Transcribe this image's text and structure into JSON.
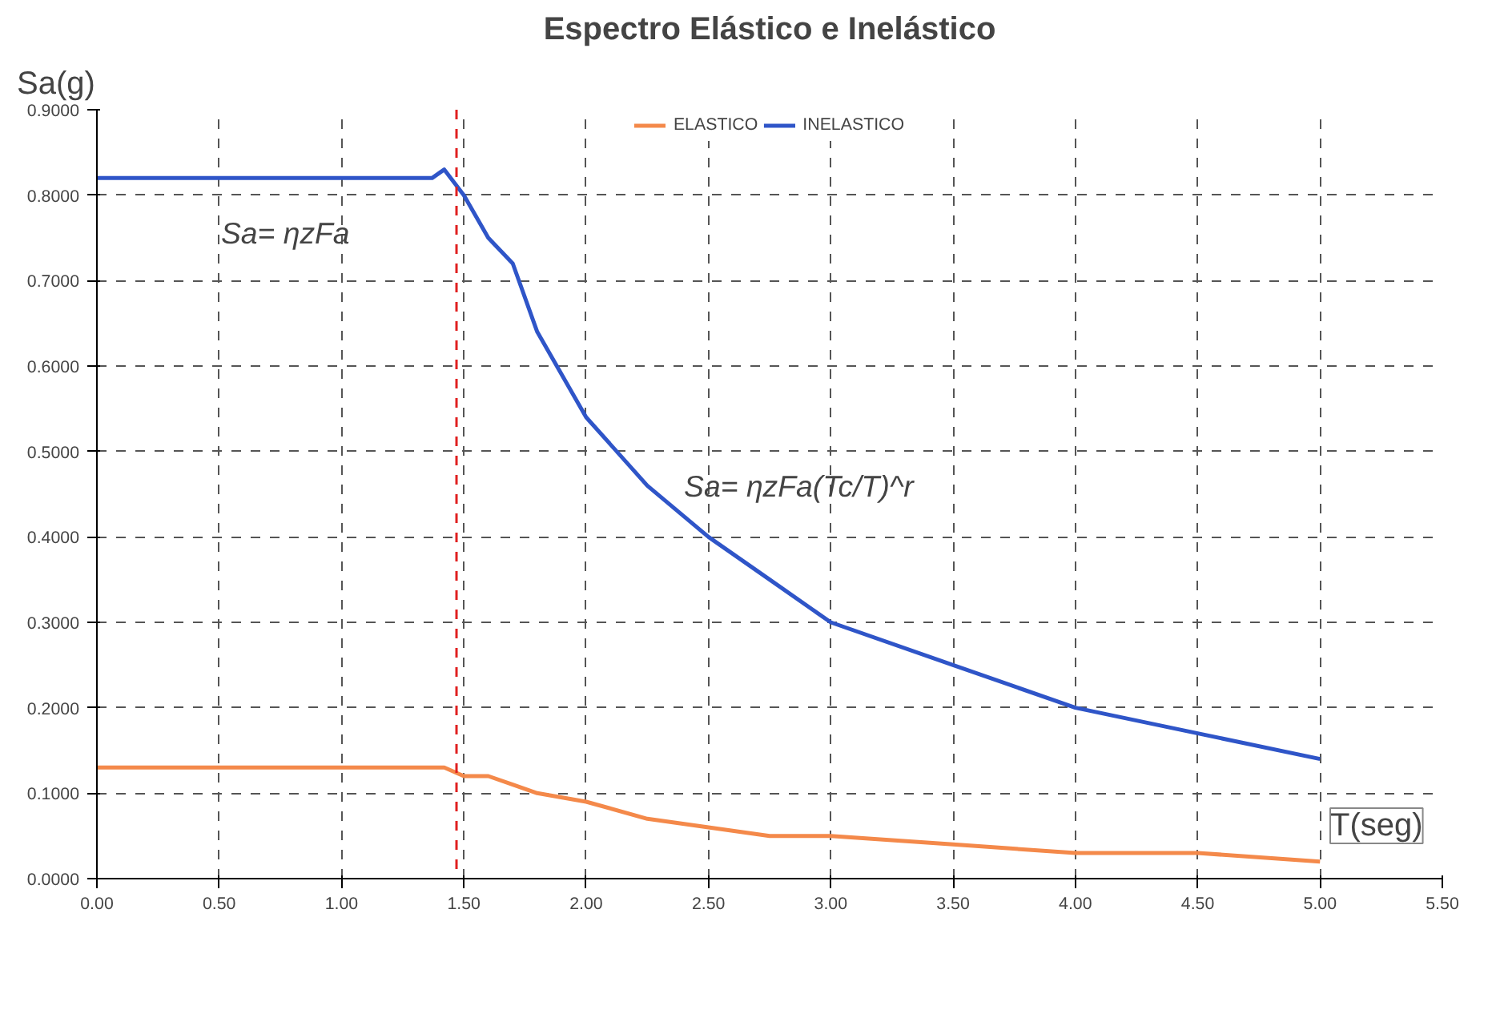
{
  "chart_data": {
    "type": "line",
    "title": "Espectro Elástico e Inelástico",
    "xlabel": "T(seg)",
    "ylabel": "Sa(g)",
    "x": [
      0,
      0.5,
      1.0,
      1.37,
      1.42,
      1.5,
      1.6,
      1.7,
      1.8,
      2.0,
      2.25,
      2.5,
      2.75,
      3.0,
      3.5,
      4.0,
      4.5,
      5.0
    ],
    "series": [
      {
        "name": "ELASTICO",
        "color": "#f4894a",
        "values": [
          0.13,
          0.13,
          0.13,
          0.13,
          0.13,
          0.12,
          0.12,
          0.11,
          0.1,
          0.09,
          0.07,
          0.06,
          0.05,
          0.05,
          0.04,
          0.03,
          0.03,
          0.02
        ]
      },
      {
        "name": "INELASTICO",
        "color": "#2f55c8",
        "values": [
          0.82,
          0.82,
          0.82,
          0.82,
          0.83,
          0.8,
          0.75,
          0.72,
          0.64,
          0.54,
          0.46,
          0.4,
          0.35,
          0.3,
          0.25,
          0.2,
          0.17,
          0.14
        ]
      }
    ],
    "xlim": [
      0,
      5.5
    ],
    "ylim": [
      0,
      0.9
    ],
    "xticks": [
      {
        "value": 0,
        "label": "0.00"
      },
      {
        "value": 0.5,
        "label": "0.50"
      },
      {
        "value": 1,
        "label": "1.00"
      },
      {
        "value": 1.5,
        "label": "1.50"
      },
      {
        "value": 2,
        "label": "2.00"
      },
      {
        "value": 2.5,
        "label": "2.50"
      },
      {
        "value": 3,
        "label": "3.00"
      },
      {
        "value": 3.5,
        "label": "3.50"
      },
      {
        "value": 4,
        "label": "4.00"
      },
      {
        "value": 4.5,
        "label": "4.50"
      },
      {
        "value": 5,
        "label": "5.00"
      },
      {
        "value": 5.5,
        "label": "5.50"
      }
    ],
    "yticks": [
      {
        "value": 0,
        "label": "0.0000"
      },
      {
        "value": 0.1,
        "label": "0.1000"
      },
      {
        "value": 0.2,
        "label": "0.2000"
      },
      {
        "value": 0.3,
        "label": "0.3000"
      },
      {
        "value": 0.4,
        "label": "0.4000"
      },
      {
        "value": 0.5,
        "label": "0.5000"
      },
      {
        "value": 0.6,
        "label": "0.6000"
      },
      {
        "value": 0.7,
        "label": "0.7000"
      },
      {
        "value": 0.8,
        "label": "0.8000"
      },
      {
        "value": 0.9,
        "label": "0.9000"
      }
    ],
    "ref_lines": [
      {
        "axis": "x",
        "value": 1.47,
        "color": "#e02020",
        "line_style": "dashed"
      }
    ],
    "annotations": [
      {
        "text": "Sa= ηzFa",
        "x": 0.9,
        "y": 0.82
      },
      {
        "text": "Sa= ηzFa(Tc/T)^r",
        "x": 2.4,
        "y": 0.43
      }
    ],
    "grid": true,
    "legend": "top",
    "marker": "none",
    "line_style": "solid"
  }
}
